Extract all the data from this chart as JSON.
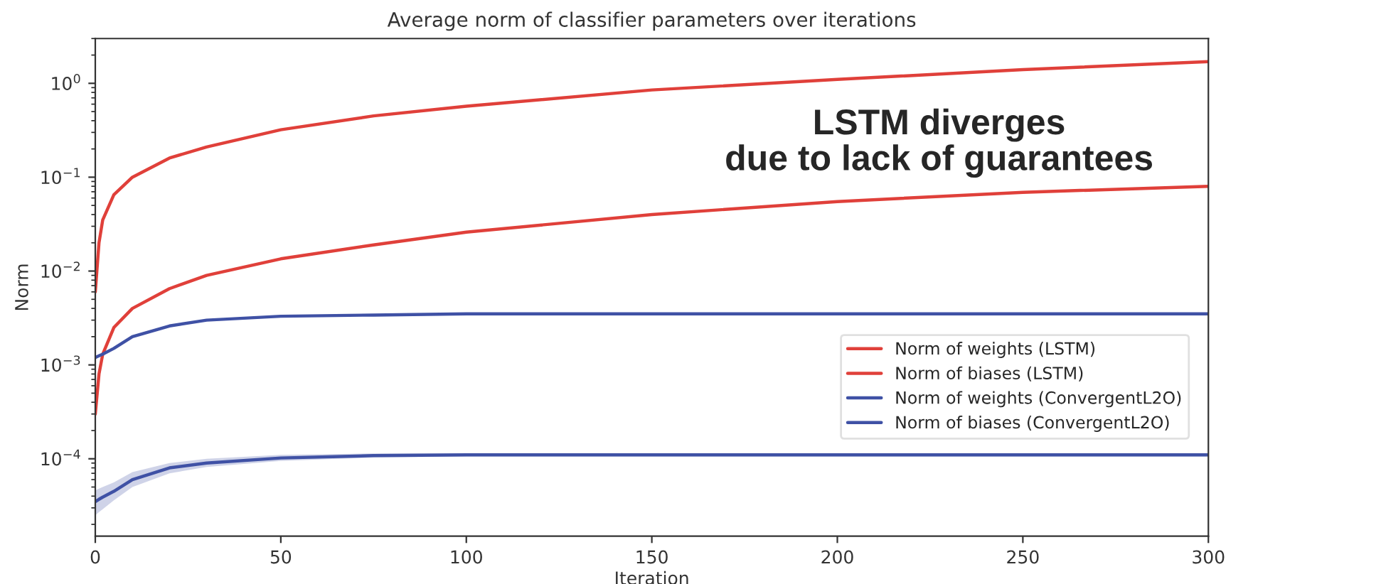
{
  "chart_data": {
    "type": "line",
    "title": "Average norm of classifier parameters over iterations",
    "xlabel": "Iteration",
    "ylabel": "Norm",
    "x": [
      0,
      1,
      2,
      5,
      10,
      20,
      30,
      50,
      75,
      100,
      150,
      200,
      250,
      300
    ],
    "series": [
      {
        "name": "Norm of weights (LSTM)",
        "color": "#e0403a",
        "values": [
          0.006,
          0.02,
          0.035,
          0.065,
          0.1,
          0.16,
          0.21,
          0.32,
          0.45,
          0.57,
          0.85,
          1.1,
          1.4,
          1.7
        ]
      },
      {
        "name": "Norm of biases (LSTM)",
        "color": "#e0403a",
        "values": [
          0.0003,
          0.0008,
          0.0013,
          0.0025,
          0.004,
          0.0065,
          0.009,
          0.0135,
          0.019,
          0.026,
          0.04,
          0.055,
          0.069,
          0.08
        ]
      },
      {
        "name": "Norm of weights (ConvergentL2O)",
        "color": "#3f51a5",
        "values": [
          0.0012,
          0.00125,
          0.0013,
          0.0015,
          0.002,
          0.0026,
          0.003,
          0.0033,
          0.0034,
          0.0035,
          0.0035,
          0.0035,
          0.0035,
          0.0035
        ]
      },
      {
        "name": "Norm of biases (ConvergentL2O)",
        "color": "#3f51a5",
        "values": [
          3.5e-05,
          3.7e-05,
          3.9e-05,
          4.5e-05,
          6e-05,
          8e-05,
          9e-05,
          0.000102,
          0.000108,
          0.00011,
          0.00011,
          0.00011,
          0.00011,
          0.00011
        ],
        "lower": [
          2.5e-05,
          2.7e-05,
          2.9e-05,
          3.6e-05,
          5e-05,
          7e-05,
          8.2e-05,
          9.5e-05,
          0.000103,
          0.000106,
          0.000106,
          0.000106,
          0.000106,
          0.000106
        ],
        "upper": [
          4.6e-05,
          4.8e-05,
          5e-05,
          5.6e-05,
          7.2e-05,
          9e-05,
          0.0001,
          0.00011,
          0.000114,
          0.000115,
          0.000115,
          0.000115,
          0.000115,
          0.000115
        ]
      }
    ],
    "log": "y",
    "xlim": [
      0,
      300
    ],
    "xticks": [
      0,
      50,
      100,
      150,
      200,
      250,
      300
    ],
    "ylim": [
      1.5e-05,
      3
    ],
    "yticks": [
      {
        "value": 0.0001,
        "label": "10$^{−4}$"
      },
      {
        "value": 0.001,
        "label": "10$^{−3}$"
      },
      {
        "value": 0.01,
        "label": "10$^{−2}$"
      },
      {
        "value": 0.1,
        "label": "10$^{−1}$"
      },
      {
        "value": 1,
        "label": "10$^{0}$"
      }
    ],
    "legend": "right",
    "grid": false,
    "annotations": [
      "LSTM diverges\ndue to lack of guarantees"
    ]
  }
}
